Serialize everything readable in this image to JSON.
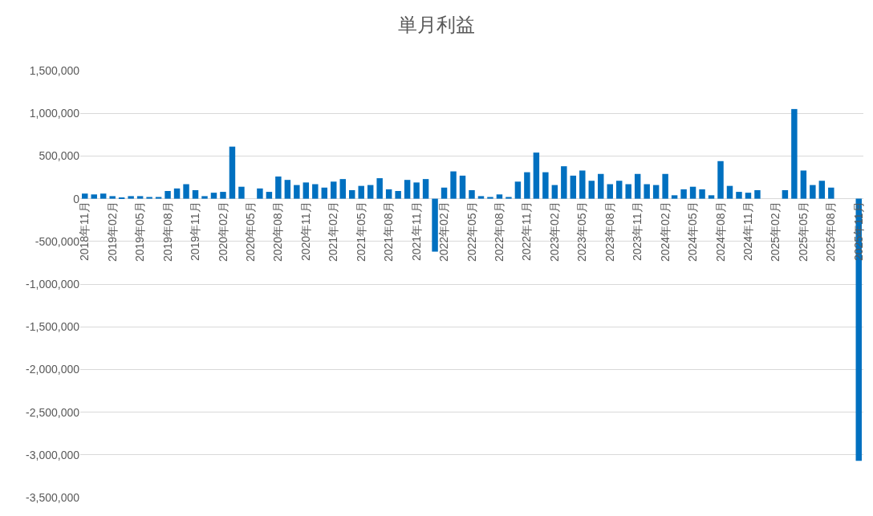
{
  "chart_data": {
    "type": "bar",
    "title": "単月利益",
    "color": "#0070c0",
    "categories": [
      "2018年11月",
      null,
      null,
      "2019年02月",
      null,
      null,
      "2019年05月",
      null,
      null,
      "2019年08月",
      null,
      null,
      "2019年11月",
      null,
      null,
      "2020年02月",
      null,
      null,
      "2020年05月",
      null,
      null,
      "2020年08月",
      null,
      null,
      "2020年11月",
      null,
      null,
      "2021年02月",
      null,
      null,
      "2021年05月",
      null,
      null,
      "2021年08月",
      null,
      null,
      "2021年11月",
      null,
      null,
      "2022年02月",
      null,
      null,
      "2022年05月",
      null,
      null,
      "2022年08月",
      null,
      null,
      "2022年11月",
      null,
      null,
      "2023年02月",
      null,
      null,
      "2023年05月",
      null,
      null,
      "2023年08月",
      null,
      null,
      "2023年11月",
      null,
      null,
      "2024年02月",
      null,
      null,
      "2024年05月",
      null,
      null,
      "2024年08月",
      null,
      null,
      "2024年11月",
      null,
      null,
      "2025年02月",
      null,
      null,
      "2025年05月",
      null,
      null,
      "2025年08月",
      null,
      null,
      "2025年11月"
    ],
    "values": [
      60000,
      50000,
      60000,
      30000,
      10000,
      30000,
      30000,
      20000,
      20000,
      90000,
      120000,
      170000,
      100000,
      30000,
      70000,
      80000,
      610000,
      140000,
      null,
      120000,
      80000,
      260000,
      220000,
      160000,
      190000,
      170000,
      130000,
      200000,
      230000,
      100000,
      150000,
      160000,
      240000,
      110000,
      90000,
      220000,
      190000,
      230000,
      -620000,
      130000,
      320000,
      270000,
      100000,
      30000,
      20000,
      50000,
      20000,
      200000,
      310000,
      540000,
      310000,
      160000,
      380000,
      270000,
      330000,
      210000,
      290000,
      170000,
      210000,
      170000,
      290000,
      170000,
      160000,
      290000,
      40000,
      110000,
      140000,
      110000,
      40000,
      440000,
      150000,
      80000,
      70000,
      100000,
      null,
      null,
      100000,
      1050000,
      330000,
      160000,
      210000,
      130000,
      null,
      null,
      -3070000
    ],
    "ylim": [
      -3500000,
      1500000
    ],
    "yticks": [
      {
        "value": -3500000,
        "label": "-3,500,000"
      },
      {
        "value": -3000000,
        "label": "-3,000,000"
      },
      {
        "value": -2500000,
        "label": "-2,500,000"
      },
      {
        "value": -2000000,
        "label": "-2,000,000"
      },
      {
        "value": -1500000,
        "label": "-1,500,000"
      },
      {
        "value": -1000000,
        "label": "-1,000,000"
      },
      {
        "value": -500000,
        "label": "-500,000"
      },
      {
        "value": 0,
        "label": "0"
      },
      {
        "value": 500000,
        "label": "500,000"
      },
      {
        "value": 1000000,
        "label": "1,000,000"
      },
      {
        "value": 1500000,
        "label": "1,500,000"
      }
    ],
    "grid": "y",
    "legend": false
  }
}
